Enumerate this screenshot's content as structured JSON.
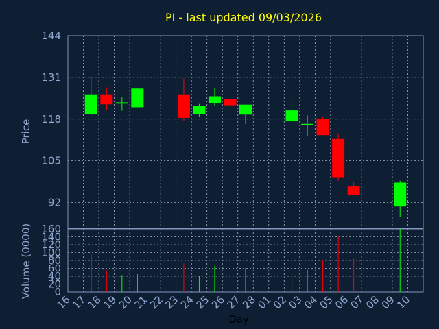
{
  "chart_data": [
    {
      "type": "candlestick",
      "title": "PI - last updated 09/03/2026",
      "ylabel": "Price",
      "ylim": [
        84,
        144
      ],
      "yticks": [
        "92",
        "105",
        "118",
        "131",
        "144"
      ],
      "grid": true,
      "colors": {
        "up": "#00ff00",
        "down": "#ff0000",
        "title": "#ffff00",
        "axis_text": "#8fa8d0",
        "grid": "#a8b4c8"
      },
      "categories": [
        "16",
        "17",
        "18",
        "19",
        "20",
        "21",
        "22",
        "23",
        "24",
        "25",
        "26",
        "27",
        "28",
        "01",
        "02",
        "03",
        "04",
        "05",
        "06",
        "07",
        "08",
        "09",
        "10"
      ],
      "ohlc": [
        {
          "x": "17",
          "open": 119.5,
          "high": 131.3,
          "low": 119.2,
          "close": 125.7
        },
        {
          "x": "18",
          "open": 125.7,
          "high": 127.9,
          "low": 120.7,
          "close": 122.6
        },
        {
          "x": "19",
          "open": 122.8,
          "high": 124.8,
          "low": 120.6,
          "close": 123.2
        },
        {
          "x": "20",
          "open": 121.7,
          "high": 127.6,
          "low": 121.7,
          "close": 127.5
        },
        {
          "x": "23",
          "open": 125.7,
          "high": 130.7,
          "low": 117.4,
          "close": 118.4
        },
        {
          "x": "24",
          "open": 119.5,
          "high": 122.7,
          "low": 118.8,
          "close": 122.2
        },
        {
          "x": "25",
          "open": 122.9,
          "high": 127.6,
          "low": 122.2,
          "close": 125.1
        },
        {
          "x": "26",
          "open": 124.3,
          "high": 125.0,
          "low": 119.2,
          "close": 122.3
        },
        {
          "x": "27",
          "open": 119.4,
          "high": 122.5,
          "low": 116.5,
          "close": 122.5
        },
        {
          "x": "02",
          "open": 117.3,
          "high": 124.3,
          "low": 117.2,
          "close": 120.7
        },
        {
          "x": "03",
          "open": 116.5,
          "high": 119.2,
          "low": 112.7,
          "close": 116.5
        },
        {
          "x": "04",
          "open": 118.1,
          "high": 118.7,
          "low": 113.0,
          "close": 113.0
        },
        {
          "x": "05",
          "open": 111.8,
          "high": 113.5,
          "low": 98.8,
          "close": 99.9
        },
        {
          "x": "06",
          "open": 97.0,
          "high": 98.4,
          "low": 94.2,
          "close": 94.3
        },
        {
          "x": "09",
          "open": 90.8,
          "high": 98.8,
          "low": 87.6,
          "close": 98.2
        }
      ]
    },
    {
      "type": "bar",
      "xlabel": "Day",
      "ylabel": "Volume (0000)",
      "ylim": [
        0,
        160
      ],
      "yticks": [
        "0",
        "20",
        "40",
        "60",
        "80",
        "100",
        "120",
        "140",
        "160"
      ],
      "categories": [
        "16",
        "17",
        "18",
        "19",
        "20",
        "21",
        "22",
        "23",
        "24",
        "25",
        "26",
        "27",
        "28",
        "01",
        "02",
        "03",
        "04",
        "05",
        "06",
        "07",
        "08",
        "09",
        "10"
      ],
      "bars": [
        {
          "x": "17",
          "value": 95,
          "direction": "up"
        },
        {
          "x": "18",
          "value": 55,
          "direction": "down"
        },
        {
          "x": "19",
          "value": 43,
          "direction": "up"
        },
        {
          "x": "20",
          "value": 45,
          "direction": "up"
        },
        {
          "x": "23",
          "value": 72,
          "direction": "down"
        },
        {
          "x": "24",
          "value": 40,
          "direction": "up"
        },
        {
          "x": "25",
          "value": 66,
          "direction": "up"
        },
        {
          "x": "26",
          "value": 35,
          "direction": "down"
        },
        {
          "x": "27",
          "value": 60,
          "direction": "up"
        },
        {
          "x": "02",
          "value": 40,
          "direction": "up"
        },
        {
          "x": "03",
          "value": 56,
          "direction": "up"
        },
        {
          "x": "04",
          "value": 80,
          "direction": "down"
        },
        {
          "x": "05",
          "value": 140,
          "direction": "down"
        },
        {
          "x": "06",
          "value": 84,
          "direction": "down"
        },
        {
          "x": "09",
          "value": 162,
          "direction": "up"
        }
      ]
    }
  ]
}
